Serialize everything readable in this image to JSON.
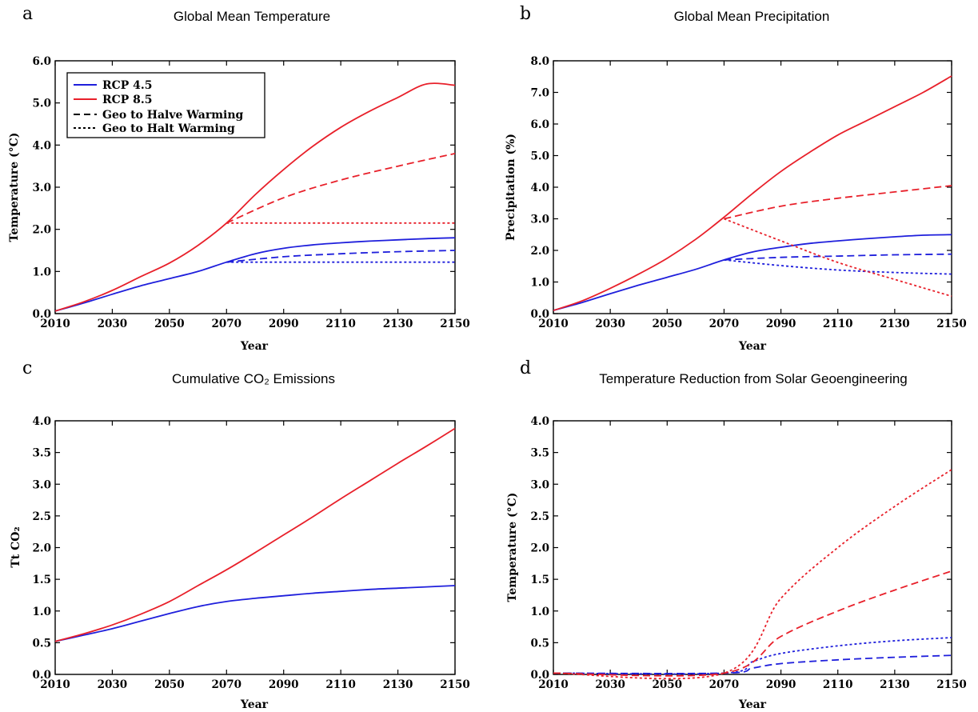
{
  "colors": {
    "rcp45": "#1f1fdc",
    "rcp85": "#e8202a"
  },
  "legend": {
    "items": [
      {
        "label": "RCP 4.5",
        "color": "#1f1fdc",
        "style": "solid"
      },
      {
        "label": "RCP 8.5",
        "color": "#e8202a",
        "style": "solid"
      },
      {
        "label": "Geo to Halve Warming",
        "color": "#000000",
        "style": "dashed"
      },
      {
        "label": "Geo to Halt Warming",
        "color": "#000000",
        "style": "dotted"
      }
    ]
  },
  "chart_data": [
    {
      "panel": "a",
      "type": "line",
      "title": "Global Mean Temperature",
      "xlabel": "Year",
      "ylabel": "Temperature (°C)",
      "xlim": [
        2010,
        2150
      ],
      "ylim": [
        0,
        6
      ],
      "xticks": [
        2010,
        2030,
        2050,
        2070,
        2090,
        2110,
        2130,
        2150
      ],
      "yticks": [
        "0.0",
        "1.0",
        "2.0",
        "3.0",
        "4.0",
        "5.0",
        "6.0"
      ],
      "legend": "top-left",
      "series": [
        {
          "scenario": "RCP 4.5",
          "color": "#1f1fdc",
          "style": "solid",
          "x": [
            2010,
            2020,
            2030,
            2040,
            2050,
            2060,
            2070,
            2080,
            2090,
            2100,
            2110,
            2120,
            2130,
            2140,
            2150
          ],
          "y": [
            0.06,
            0.25,
            0.46,
            0.66,
            0.83,
            1.0,
            1.22,
            1.42,
            1.55,
            1.63,
            1.68,
            1.72,
            1.75,
            1.78,
            1.8
          ]
        },
        {
          "scenario": "RCP 8.5",
          "color": "#e8202a",
          "style": "solid",
          "x": [
            2010,
            2020,
            2030,
            2040,
            2050,
            2060,
            2070,
            2080,
            2090,
            2100,
            2110,
            2120,
            2130,
            2140,
            2150
          ],
          "y": [
            0.06,
            0.28,
            0.55,
            0.88,
            1.2,
            1.62,
            2.15,
            2.82,
            3.42,
            3.96,
            4.42,
            4.8,
            5.13,
            5.45,
            5.42
          ]
        },
        {
          "scenario": "RCP 4.5 Geo to Halve Warming",
          "color": "#1f1fdc",
          "style": "dashed",
          "x": [
            2070,
            2090,
            2110,
            2130,
            2150
          ],
          "y": [
            1.22,
            1.35,
            1.42,
            1.47,
            1.5
          ]
        },
        {
          "scenario": "RCP 4.5 Geo to Halt Warming",
          "color": "#1f1fdc",
          "style": "dotted",
          "x": [
            2070,
            2150
          ],
          "y": [
            1.22,
            1.22
          ]
        },
        {
          "scenario": "RCP 8.5 Geo to Halve Warming",
          "color": "#e8202a",
          "style": "dashed",
          "x": [
            2070,
            2090,
            2110,
            2130,
            2150
          ],
          "y": [
            2.15,
            2.75,
            3.17,
            3.5,
            3.8
          ]
        },
        {
          "scenario": "RCP 8.5 Geo to Halt Warming",
          "color": "#e8202a",
          "style": "dotted",
          "x": [
            2070,
            2150
          ],
          "y": [
            2.15,
            2.15
          ]
        }
      ]
    },
    {
      "panel": "b",
      "type": "line",
      "title": "Global Mean Precipitation",
      "xlabel": "Year",
      "ylabel": "Precipitation (%)",
      "xlim": [
        2010,
        2150
      ],
      "ylim": [
        0,
        8
      ],
      "xticks": [
        2010,
        2030,
        2050,
        2070,
        2090,
        2110,
        2130,
        2150
      ],
      "yticks": [
        "0.0",
        "1.0",
        "2.0",
        "3.0",
        "4.0",
        "5.0",
        "6.0",
        "7.0",
        "8.0"
      ],
      "series": [
        {
          "scenario": "RCP 4.5",
          "color": "#1f1fdc",
          "style": "solid",
          "x": [
            2010,
            2020,
            2030,
            2040,
            2050,
            2060,
            2070,
            2080,
            2090,
            2100,
            2110,
            2120,
            2130,
            2140,
            2150
          ],
          "y": [
            0.1,
            0.35,
            0.63,
            0.9,
            1.15,
            1.4,
            1.7,
            1.95,
            2.1,
            2.22,
            2.3,
            2.37,
            2.43,
            2.48,
            2.5
          ]
        },
        {
          "scenario": "RCP 8.5",
          "color": "#e8202a",
          "style": "solid",
          "x": [
            2010,
            2020,
            2030,
            2040,
            2050,
            2060,
            2070,
            2080,
            2090,
            2100,
            2110,
            2120,
            2130,
            2140,
            2150
          ],
          "y": [
            0.1,
            0.4,
            0.8,
            1.25,
            1.75,
            2.35,
            3.05,
            3.8,
            4.5,
            5.1,
            5.65,
            6.1,
            6.55,
            7.0,
            7.52
          ]
        },
        {
          "scenario": "RCP 4.5 Geo to Halve Warming",
          "color": "#1f1fdc",
          "style": "dashed",
          "x": [
            2070,
            2090,
            2110,
            2130,
            2150
          ],
          "y": [
            1.7,
            1.78,
            1.82,
            1.86,
            1.88
          ]
        },
        {
          "scenario": "RCP 4.5 Geo to Halt Warming",
          "color": "#1f1fdc",
          "style": "dotted",
          "x": [
            2070,
            2090,
            2110,
            2130,
            2150
          ],
          "y": [
            1.7,
            1.52,
            1.38,
            1.3,
            1.25
          ]
        },
        {
          "scenario": "RCP 8.5 Geo to Halve Warming",
          "color": "#e8202a",
          "style": "dashed",
          "x": [
            2070,
            2090,
            2110,
            2130,
            2150
          ],
          "y": [
            3.0,
            3.4,
            3.65,
            3.85,
            4.05
          ]
        },
        {
          "scenario": "RCP 8.5 Geo to Halt Warming",
          "color": "#e8202a",
          "style": "dotted",
          "x": [
            2070,
            2090,
            2110,
            2130,
            2150
          ],
          "y": [
            3.0,
            2.3,
            1.62,
            1.08,
            0.55
          ]
        }
      ]
    },
    {
      "panel": "c",
      "type": "line",
      "title": "Cumulative CO₂ Emissions",
      "xlabel": "Year",
      "ylabel": "Tt CO₂",
      "xlim": [
        2010,
        2150
      ],
      "ylim": [
        0,
        4
      ],
      "xticks": [
        2010,
        2030,
        2050,
        2070,
        2090,
        2110,
        2130,
        2150
      ],
      "yticks": [
        "0.0",
        "0.5",
        "1.0",
        "1.5",
        "2.0",
        "2.5",
        "3.0",
        "3.5",
        "4.0"
      ],
      "series": [
        {
          "scenario": "RCP 4.5",
          "color": "#1f1fdc",
          "style": "solid",
          "x": [
            2010,
            2020,
            2030,
            2040,
            2050,
            2060,
            2070,
            2080,
            2090,
            2100,
            2110,
            2120,
            2130,
            2140,
            2150
          ],
          "y": [
            0.52,
            0.62,
            0.72,
            0.84,
            0.96,
            1.07,
            1.15,
            1.2,
            1.24,
            1.28,
            1.31,
            1.34,
            1.36,
            1.38,
            1.4
          ]
        },
        {
          "scenario": "RCP 8.5",
          "color": "#e8202a",
          "style": "solid",
          "x": [
            2010,
            2020,
            2030,
            2040,
            2050,
            2060,
            2070,
            2080,
            2090,
            2100,
            2110,
            2120,
            2130,
            2140,
            2150
          ],
          "y": [
            0.52,
            0.64,
            0.78,
            0.95,
            1.15,
            1.4,
            1.65,
            1.92,
            2.2,
            2.48,
            2.77,
            3.05,
            3.33,
            3.6,
            3.88
          ]
        }
      ]
    },
    {
      "panel": "d",
      "type": "line",
      "title": "Temperature Reduction from Solar Geoengineering",
      "xlabel": "Year",
      "ylabel": "Temperature (°C)",
      "xlim": [
        2010,
        2150
      ],
      "ylim": [
        0,
        4
      ],
      "xticks": [
        2010,
        2030,
        2050,
        2070,
        2090,
        2110,
        2130,
        2150
      ],
      "yticks": [
        "0.0",
        "0.5",
        "1.0",
        "1.5",
        "2.0",
        "2.5",
        "3.0",
        "3.5",
        "4.0"
      ],
      "series": [
        {
          "scenario": "RCP 4.5 Geo to Halve Warming",
          "color": "#1f1fdc",
          "style": "dashed",
          "x": [
            2010,
            2070,
            2080,
            2090,
            2110,
            2130,
            2150
          ],
          "y": [
            0.02,
            0.02,
            0.1,
            0.17,
            0.23,
            0.27,
            0.3
          ]
        },
        {
          "scenario": "RCP 4.5 Geo to Halt Warming",
          "color": "#1f1fdc",
          "style": "dotted",
          "x": [
            2010,
            2070,
            2080,
            2090,
            2110,
            2130,
            2150
          ],
          "y": [
            0.02,
            0.02,
            0.2,
            0.33,
            0.45,
            0.53,
            0.58
          ]
        },
        {
          "scenario": "RCP 8.5 Geo to Halve Warming",
          "color": "#e8202a",
          "style": "dashed",
          "x": [
            2010,
            2070,
            2090,
            2110,
            2130,
            2150
          ],
          "y": [
            0.02,
            0.02,
            0.6,
            1.0,
            1.33,
            1.63
          ]
        },
        {
          "scenario": "RCP 8.5 Geo to Halt Warming",
          "color": "#e8202a",
          "style": "dotted",
          "x": [
            2010,
            2070,
            2090,
            2110,
            2130,
            2150
          ],
          "y": [
            0.02,
            0.02,
            1.2,
            2.0,
            2.65,
            3.23
          ]
        }
      ]
    }
  ]
}
